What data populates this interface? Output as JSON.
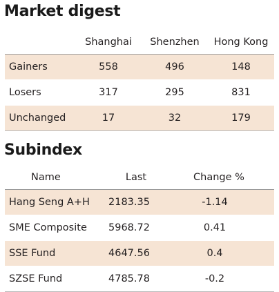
{
  "market_digest": {
    "title": "Market digest",
    "columns": [
      "Shanghai",
      "Shenzhen",
      "Hong Kong"
    ],
    "rows": [
      {
        "label": "Gainers",
        "values": [
          "558",
          "496",
          "148"
        ]
      },
      {
        "label": "Losers",
        "values": [
          "317",
          "295",
          "831"
        ]
      },
      {
        "label": "Unchanged",
        "values": [
          "17",
          "32",
          "179"
        ]
      }
    ]
  },
  "subindex": {
    "title": "Subindex",
    "columns": [
      "Name",
      "Last",
      "Change %"
    ],
    "rows": [
      {
        "name": "Hang Seng A+H",
        "last": "2183.35",
        "change": "-1.14"
      },
      {
        "name": "SME Composite",
        "last": "5968.72",
        "change": "0.41"
      },
      {
        "name": "SSE Fund",
        "last": "4647.56",
        "change": "0.4"
      },
      {
        "name": "SZSE Fund",
        "last": "4785.78",
        "change": "-0.2"
      }
    ]
  },
  "colors": {
    "row_shade": "#f6e4d4",
    "text": "#231f20"
  }
}
